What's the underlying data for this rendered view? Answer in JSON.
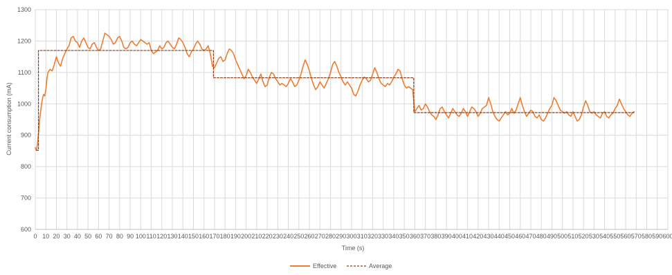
{
  "chart_data": {
    "type": "line",
    "title": "",
    "xlabel": "Time (s)",
    "ylabel": "Current consumption (mA)",
    "xlim": [
      0,
      600
    ],
    "ylim": [
      600,
      1300
    ],
    "x_ticks": [
      0,
      10,
      20,
      30,
      40,
      50,
      60,
      70,
      80,
      90,
      100,
      110,
      120,
      130,
      140,
      150,
      160,
      170,
      180,
      190,
      200,
      210,
      220,
      230,
      240,
      250,
      260,
      270,
      280,
      290,
      300,
      310,
      320,
      330,
      340,
      350,
      360,
      370,
      380,
      390,
      400,
      410,
      420,
      430,
      440,
      450,
      460,
      470,
      480,
      490,
      500,
      510,
      520,
      530,
      540,
      550,
      560,
      570,
      580,
      590,
      600
    ],
    "x_tick_labels": [
      "0",
      "10",
      "20",
      "30",
      "40",
      "50",
      "60",
      "70",
      "80",
      "90",
      "100",
      "110",
      "120",
      "130",
      "140",
      "150",
      "160",
      "170",
      "180",
      "190",
      "200",
      "210",
      "220",
      "230",
      "240",
      "250",
      "260",
      "270",
      "280",
      "290",
      "300",
      "310",
      "320",
      "330",
      "340",
      "350",
      "360",
      "370",
      "380",
      "390",
      "400",
      "410",
      "420",
      "430",
      "440",
      "450",
      "460",
      "470",
      "480",
      "490",
      "500",
      "510",
      "520",
      "530",
      "540",
      "550",
      "560",
      "570",
      "580",
      "590",
      "600"
    ],
    "y_ticks": [
      600,
      700,
      800,
      900,
      1000,
      1100,
      1200,
      1300
    ],
    "y_tick_labels": [
      "600",
      "700",
      "800",
      "900",
      "1000",
      "1100",
      "1200",
      "1300"
    ],
    "grid": true,
    "legend_position": "bottom-center",
    "series": [
      {
        "name": "Effective",
        "style": "solid",
        "color": "#ED7D31",
        "points": [
          [
            0,
            860
          ],
          [
            1,
            852
          ],
          [
            2,
            870
          ],
          [
            3,
            905
          ],
          [
            4,
            945
          ],
          [
            5,
            975
          ],
          [
            6,
            1000
          ],
          [
            7,
            1020
          ],
          [
            8,
            1030
          ],
          [
            9,
            1025
          ],
          [
            10,
            1045
          ],
          [
            11,
            1080
          ],
          [
            12,
            1100
          ],
          [
            14,
            1110
          ],
          [
            16,
            1105
          ],
          [
            18,
            1125
          ],
          [
            20,
            1150
          ],
          [
            22,
            1130
          ],
          [
            24,
            1120
          ],
          [
            26,
            1145
          ],
          [
            28,
            1160
          ],
          [
            30,
            1175
          ],
          [
            32,
            1185
          ],
          [
            34,
            1210
          ],
          [
            36,
            1215
          ],
          [
            38,
            1200
          ],
          [
            40,
            1195
          ],
          [
            42,
            1180
          ],
          [
            44,
            1200
          ],
          [
            46,
            1210
          ],
          [
            48,
            1195
          ],
          [
            50,
            1180
          ],
          [
            52,
            1175
          ],
          [
            54,
            1190
          ],
          [
            56,
            1195
          ],
          [
            58,
            1180
          ],
          [
            60,
            1170
          ],
          [
            62,
            1175
          ],
          [
            64,
            1200
          ],
          [
            66,
            1225
          ],
          [
            68,
            1220
          ],
          [
            70,
            1215
          ],
          [
            72,
            1205
          ],
          [
            74,
            1190
          ],
          [
            76,
            1195
          ],
          [
            78,
            1210
          ],
          [
            80,
            1215
          ],
          [
            82,
            1200
          ],
          [
            84,
            1180
          ],
          [
            86,
            1175
          ],
          [
            88,
            1180
          ],
          [
            90,
            1195
          ],
          [
            92,
            1200
          ],
          [
            94,
            1190
          ],
          [
            96,
            1185
          ],
          [
            98,
            1195
          ],
          [
            100,
            1205
          ],
          [
            102,
            1200
          ],
          [
            104,
            1195
          ],
          [
            106,
            1190
          ],
          [
            108,
            1195
          ],
          [
            110,
            1170
          ],
          [
            112,
            1160
          ],
          [
            114,
            1165
          ],
          [
            116,
            1170
          ],
          [
            118,
            1185
          ],
          [
            120,
            1175
          ],
          [
            122,
            1180
          ],
          [
            124,
            1195
          ],
          [
            126,
            1200
          ],
          [
            128,
            1190
          ],
          [
            130,
            1180
          ],
          [
            132,
            1175
          ],
          [
            134,
            1190
          ],
          [
            136,
            1210
          ],
          [
            138,
            1205
          ],
          [
            140,
            1195
          ],
          [
            142,
            1180
          ],
          [
            144,
            1160
          ],
          [
            146,
            1150
          ],
          [
            148,
            1165
          ],
          [
            150,
            1175
          ],
          [
            152,
            1190
          ],
          [
            154,
            1200
          ],
          [
            156,
            1190
          ],
          [
            158,
            1175
          ],
          [
            160,
            1170
          ],
          [
            162,
            1175
          ],
          [
            164,
            1185
          ],
          [
            166,
            1160
          ],
          [
            168,
            1120
          ],
          [
            170,
            1115
          ],
          [
            172,
            1130
          ],
          [
            174,
            1145
          ],
          [
            176,
            1150
          ],
          [
            178,
            1135
          ],
          [
            180,
            1140
          ],
          [
            182,
            1160
          ],
          [
            184,
            1175
          ],
          [
            186,
            1170
          ],
          [
            188,
            1160
          ],
          [
            190,
            1140
          ],
          [
            192,
            1125
          ],
          [
            194,
            1110
          ],
          [
            196,
            1095
          ],
          [
            198,
            1080
          ],
          [
            200,
            1090
          ],
          [
            202,
            1110
          ],
          [
            204,
            1100
          ],
          [
            206,
            1085
          ],
          [
            208,
            1075
          ],
          [
            210,
            1065
          ],
          [
            212,
            1080
          ],
          [
            214,
            1095
          ],
          [
            216,
            1070
          ],
          [
            218,
            1055
          ],
          [
            220,
            1060
          ],
          [
            222,
            1085
          ],
          [
            224,
            1100
          ],
          [
            226,
            1095
          ],
          [
            228,
            1080
          ],
          [
            230,
            1070
          ],
          [
            232,
            1060
          ],
          [
            234,
            1065
          ],
          [
            236,
            1060
          ],
          [
            238,
            1055
          ],
          [
            240,
            1065
          ],
          [
            242,
            1080
          ],
          [
            244,
            1070
          ],
          [
            246,
            1055
          ],
          [
            248,
            1060
          ],
          [
            250,
            1075
          ],
          [
            252,
            1095
          ],
          [
            254,
            1120
          ],
          [
            256,
            1140
          ],
          [
            258,
            1125
          ],
          [
            260,
            1105
          ],
          [
            262,
            1080
          ],
          [
            264,
            1060
          ],
          [
            266,
            1045
          ],
          [
            268,
            1055
          ],
          [
            270,
            1070
          ],
          [
            272,
            1060
          ],
          [
            274,
            1050
          ],
          [
            276,
            1065
          ],
          [
            278,
            1080
          ],
          [
            280,
            1100
          ],
          [
            282,
            1125
          ],
          [
            284,
            1135
          ],
          [
            286,
            1120
          ],
          [
            288,
            1100
          ],
          [
            290,
            1085
          ],
          [
            292,
            1070
          ],
          [
            294,
            1060
          ],
          [
            296,
            1070
          ],
          [
            298,
            1060
          ],
          [
            300,
            1050
          ],
          [
            302,
            1030
          ],
          [
            304,
            1025
          ],
          [
            306,
            1040
          ],
          [
            308,
            1060
          ],
          [
            310,
            1075
          ],
          [
            312,
            1085
          ],
          [
            314,
            1080
          ],
          [
            316,
            1070
          ],
          [
            318,
            1075
          ],
          [
            320,
            1095
          ],
          [
            322,
            1115
          ],
          [
            324,
            1100
          ],
          [
            326,
            1080
          ],
          [
            328,
            1065
          ],
          [
            330,
            1060
          ],
          [
            332,
            1055
          ],
          [
            334,
            1065
          ],
          [
            336,
            1060
          ],
          [
            338,
            1070
          ],
          [
            340,
            1085
          ],
          [
            342,
            1095
          ],
          [
            344,
            1110
          ],
          [
            346,
            1105
          ],
          [
            348,
            1080
          ],
          [
            350,
            1060
          ],
          [
            352,
            1050
          ],
          [
            354,
            1055
          ],
          [
            356,
            1050
          ],
          [
            358,
            1045
          ],
          [
            359,
            1010
          ],
          [
            360,
            975
          ],
          [
            362,
            985
          ],
          [
            364,
            995
          ],
          [
            366,
            980
          ],
          [
            368,
            985
          ],
          [
            370,
            1000
          ],
          [
            372,
            990
          ],
          [
            374,
            975
          ],
          [
            376,
            965
          ],
          [
            378,
            960
          ],
          [
            380,
            950
          ],
          [
            382,
            965
          ],
          [
            384,
            985
          ],
          [
            386,
            990
          ],
          [
            388,
            975
          ],
          [
            390,
            965
          ],
          [
            392,
            955
          ],
          [
            394,
            970
          ],
          [
            396,
            985
          ],
          [
            398,
            975
          ],
          [
            400,
            965
          ],
          [
            402,
            960
          ],
          [
            404,
            970
          ],
          [
            406,
            985
          ],
          [
            408,
            975
          ],
          [
            410,
            960
          ],
          [
            412,
            975
          ],
          [
            414,
            990
          ],
          [
            416,
            985
          ],
          [
            418,
            975
          ],
          [
            420,
            960
          ],
          [
            422,
            970
          ],
          [
            424,
            985
          ],
          [
            426,
            990
          ],
          [
            428,
            995
          ],
          [
            430,
            1020
          ],
          [
            432,
            1000
          ],
          [
            434,
            975
          ],
          [
            436,
            960
          ],
          [
            438,
            950
          ],
          [
            440,
            945
          ],
          [
            442,
            955
          ],
          [
            444,
            965
          ],
          [
            446,
            975
          ],
          [
            448,
            965
          ],
          [
            450,
            970
          ],
          [
            452,
            985
          ],
          [
            454,
            970
          ],
          [
            456,
            980
          ],
          [
            458,
            1000
          ],
          [
            460,
            1020
          ],
          [
            462,
            995
          ],
          [
            464,
            975
          ],
          [
            466,
            960
          ],
          [
            468,
            970
          ],
          [
            470,
            980
          ],
          [
            472,
            975
          ],
          [
            474,
            960
          ],
          [
            476,
            955
          ],
          [
            478,
            965
          ],
          [
            480,
            950
          ],
          [
            482,
            945
          ],
          [
            484,
            955
          ],
          [
            486,
            970
          ],
          [
            488,
            985
          ],
          [
            490,
            995
          ],
          [
            492,
            1020
          ],
          [
            494,
            1010
          ],
          [
            496,
            995
          ],
          [
            498,
            980
          ],
          [
            500,
            975
          ],
          [
            502,
            970
          ],
          [
            504,
            975
          ],
          [
            506,
            965
          ],
          [
            508,
            960
          ],
          [
            510,
            975
          ],
          [
            512,
            960
          ],
          [
            514,
            945
          ],
          [
            516,
            950
          ],
          [
            518,
            965
          ],
          [
            520,
            990
          ],
          [
            522,
            1010
          ],
          [
            524,
            995
          ],
          [
            526,
            975
          ],
          [
            528,
            970
          ],
          [
            530,
            975
          ],
          [
            532,
            965
          ],
          [
            534,
            960
          ],
          [
            536,
            955
          ],
          [
            538,
            970
          ],
          [
            540,
            975
          ],
          [
            542,
            960
          ],
          [
            544,
            955
          ],
          [
            546,
            965
          ],
          [
            548,
            970
          ],
          [
            550,
            985
          ],
          [
            552,
            995
          ],
          [
            554,
            1015
          ],
          [
            556,
            1000
          ],
          [
            558,
            985
          ],
          [
            560,
            975
          ],
          [
            562,
            965
          ],
          [
            564,
            960
          ],
          [
            566,
            970
          ],
          [
            568,
            975
          ]
        ]
      },
      {
        "name": "Average",
        "style": "dashed",
        "color": "#8B3A1A",
        "points": [
          [
            1,
            852
          ],
          [
            3,
            852
          ],
          [
            3,
            1170
          ],
          [
            169,
            1170
          ],
          [
            169,
            1083
          ],
          [
            359,
            1083
          ],
          [
            359,
            972
          ],
          [
            568,
            972
          ]
        ]
      }
    ]
  }
}
